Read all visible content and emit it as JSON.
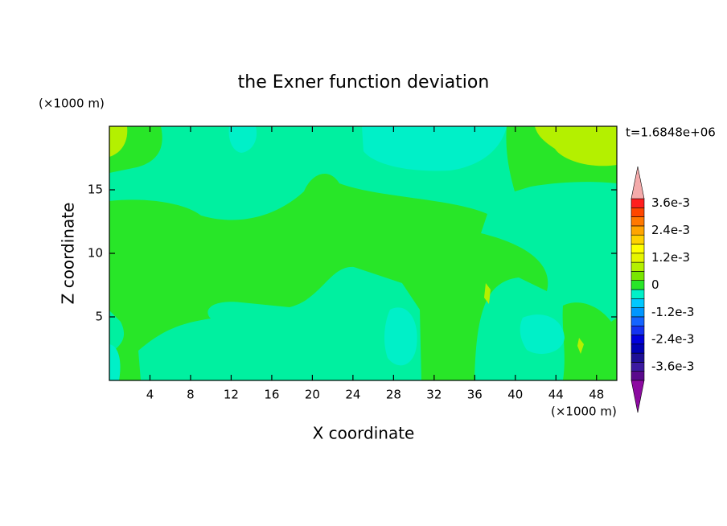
{
  "chart_data": {
    "type": "contour",
    "title": "the Exner function deviation",
    "x_label": "X coordinate",
    "y_label": "Z coordinate",
    "x_unit": "(×1000 m)",
    "y_unit": "(×1000 m)",
    "annotation": "t=1.6848e+06",
    "xlim": [
      0,
      50
    ],
    "ylim": [
      0,
      20
    ],
    "xticks": [
      4,
      8,
      12,
      16,
      20,
      24,
      28,
      32,
      36,
      40,
      44,
      48
    ],
    "yticks": [
      5,
      10,
      15
    ],
    "colorbar": {
      "clim": [
        -0.004,
        0.004
      ],
      "colors": [
        "#5a0a8c",
        "#3c1aa0",
        "#1e0f96",
        "#0000b4",
        "#0000dc",
        "#1432f0",
        "#1464ff",
        "#0096ff",
        "#00c8ff",
        "#00f0c8",
        "#28e628",
        "#78e600",
        "#b4f000",
        "#e6f500",
        "#ffff00",
        "#ffd200",
        "#ffa500",
        "#ff7800",
        "#ff4600",
        "#ff1e1e"
      ],
      "under_color": "#8c0aa0",
      "over_color": "#f4aaaa",
      "ticks": [
        {
          "value": -0.0036,
          "label": "-3.6e-3"
        },
        {
          "value": -0.0024,
          "label": "-2.4e-3"
        },
        {
          "value": -0.0012,
          "label": "-1.2e-3"
        },
        0,
        {
          "value": 0.0012,
          "label": "1.2e-3"
        },
        {
          "value": 0.0024,
          "label": "2.4e-3"
        },
        {
          "value": 0.0036,
          "label": "3.6e-3"
        }
      ]
    }
  }
}
